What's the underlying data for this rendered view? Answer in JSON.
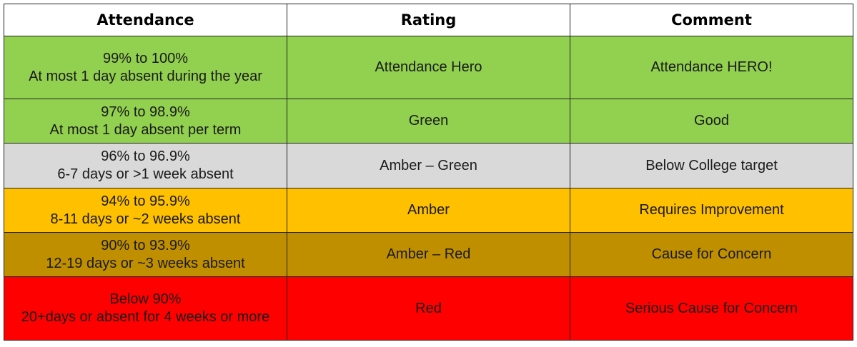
{
  "headers": [
    "Attendance",
    "Rating",
    "Comment"
  ],
  "rows": [
    {
      "attendance": [
        "99% to 100%",
        "At most 1 day absent during the year"
      ],
      "rating": "Attendance Hero",
      "comment": "Attendance HERO!",
      "color": "#92d050"
    },
    {
      "attendance": [
        "97% to 98.9%",
        "At most 1 day absent per term"
      ],
      "rating": "Green",
      "comment": "Good",
      "color": "#92d050"
    },
    {
      "attendance": [
        "96% to 96.9%",
        "6-7 days or >1 week absent"
      ],
      "rating": "Amber – Green",
      "comment": "Below College target",
      "color": "#d9d9d9"
    },
    {
      "attendance": [
        "94% to 95.9%",
        "8-11 days or ~2 weeks absent"
      ],
      "rating": "Amber",
      "comment": "Requires Improvement",
      "color": "#ffc000"
    },
    {
      "attendance": [
        "90% to 93.9%",
        "12-19 days or ~3 weeks absent"
      ],
      "rating": "Amber – Red",
      "comment": "Cause for Concern",
      "color": "#bf8f00"
    },
    {
      "attendance": [
        "Below 90%",
        "20+days or absent for 4 weeks or more"
      ],
      "rating": "Red",
      "comment": "Serious Cause for Concern",
      "color": "#ff0000"
    }
  ]
}
